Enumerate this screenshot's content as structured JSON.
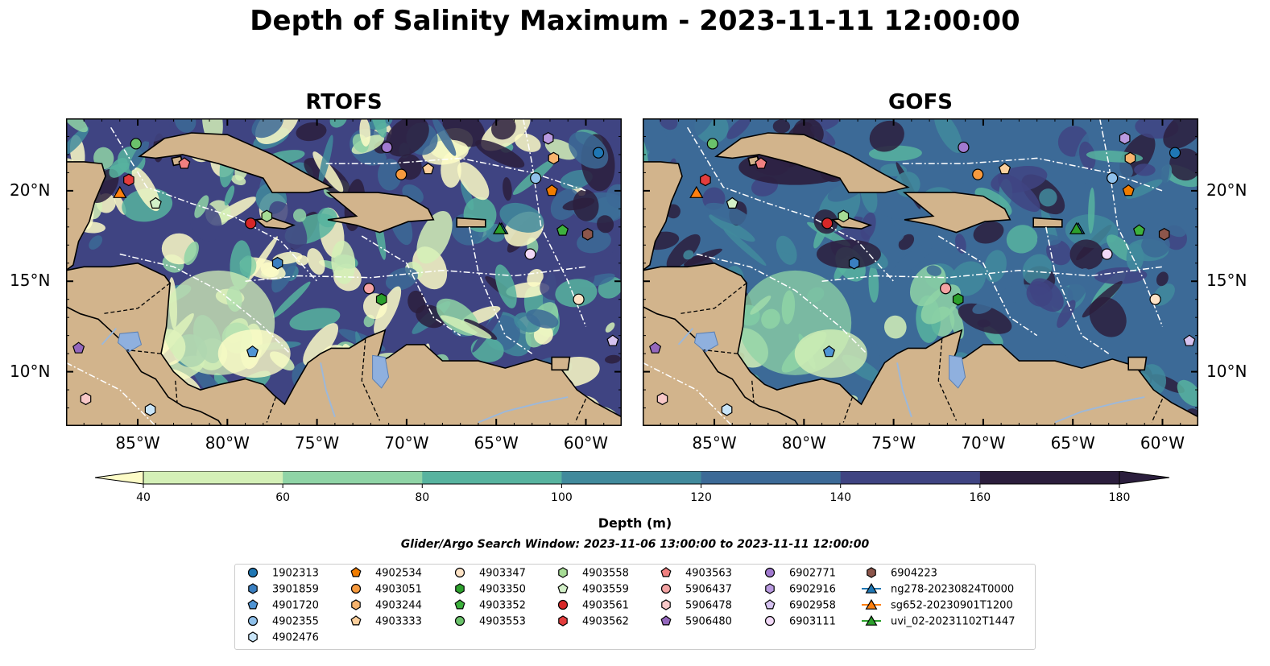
{
  "title": "Depth of Salinity Maximum - 2023-11-11 12:00:00",
  "panels": [
    {
      "title": "RTOFS"
    },
    {
      "title": "GOFS"
    }
  ],
  "lon_ticks": [
    "85°W",
    "80°W",
    "75°W",
    "70°W",
    "65°W",
    "60°W"
  ],
  "lat_ticks": [
    "20°N",
    "15°N",
    "10°N"
  ],
  "colors": {
    "land": "#d2b48c",
    "river": "#9db8d9",
    "levels": [
      "#fdfcc7",
      "#d4f0b7",
      "#8fd4a6",
      "#57b39f",
      "#418a9c",
      "#3c6a97",
      "#3f4482",
      "#2b1e3d"
    ]
  },
  "colorbar": {
    "ticks": [
      "40",
      "60",
      "80",
      "100",
      "120",
      "140",
      "160",
      "180"
    ],
    "label": "Depth (m)"
  },
  "search_window": "Glider/Argo Search Window: 2023-11-06 13:00:00 to 2023-11-11 12:00:00",
  "legend": [
    {
      "label": "1902313",
      "marker": "circle",
      "color": "#1f77b4"
    },
    {
      "label": "3901859",
      "marker": "hexagon",
      "color": "#3a7fc1"
    },
    {
      "label": "4901720",
      "marker": "pentagon",
      "color": "#4f94d4"
    },
    {
      "label": "4902355",
      "marker": "circle",
      "color": "#8fc0ea"
    },
    {
      "label": "4902476",
      "marker": "hexagon",
      "color": "#c8e4f7"
    },
    {
      "label": "4902534",
      "marker": "pentagon",
      "color": "#f07c00"
    },
    {
      "label": "4903051",
      "marker": "circle",
      "color": "#f79a3e"
    },
    {
      "label": "4903244",
      "marker": "hexagon",
      "color": "#f8b46e"
    },
    {
      "label": "4903333",
      "marker": "pentagon",
      "color": "#fbcf9c"
    },
    {
      "label": "4903347",
      "marker": "circle",
      "color": "#fde3c6"
    },
    {
      "label": "4903350",
      "marker": "hexagon",
      "color": "#2ca02c"
    },
    {
      "label": "4903352",
      "marker": "pentagon",
      "color": "#3db13d"
    },
    {
      "label": "4903553",
      "marker": "circle",
      "color": "#6bc26b"
    },
    {
      "label": "4903558",
      "marker": "hexagon",
      "color": "#a6dc95"
    },
    {
      "label": "4903559",
      "marker": "pentagon",
      "color": "#d3f0c8"
    },
    {
      "label": "4903561",
      "marker": "circle",
      "color": "#d62728"
    },
    {
      "label": "4903562",
      "marker": "hexagon",
      "color": "#e33d3d"
    },
    {
      "label": "4903563",
      "marker": "pentagon",
      "color": "#f08080"
    },
    {
      "label": "5906437",
      "marker": "circle",
      "color": "#f4a3a3"
    },
    {
      "label": "5906478",
      "marker": "hexagon",
      "color": "#f8c8c8"
    },
    {
      "label": "5906480",
      "marker": "pentagon",
      "color": "#9467bd"
    },
    {
      "label": "6902771",
      "marker": "circle",
      "color": "#a17ad0"
    },
    {
      "label": "6902916",
      "marker": "hexagon",
      "color": "#b99ae0"
    },
    {
      "label": "6902958",
      "marker": "pentagon",
      "color": "#d6c3f0"
    },
    {
      "label": "6903111",
      "marker": "circle",
      "color": "#f1d8f7"
    },
    {
      "label": "6904223",
      "marker": "hexagon",
      "color": "#8c564b"
    },
    {
      "label": "ng278-20230824T0000",
      "marker": "triangle",
      "color": "#1f77b4"
    },
    {
      "label": "sg652-20230901T1200",
      "marker": "triangle",
      "color": "#ff7f0e"
    },
    {
      "label": "uvi_02-20231102T1447",
      "marker": "triangle",
      "color": "#2ca02c"
    }
  ],
  "chart_data": {
    "type": "heatmap",
    "title": "Depth of Salinity Maximum - 2023-11-11 12:00:00",
    "xlabel": "",
    "ylabel": "",
    "xlim": [
      -89,
      -58
    ],
    "ylim": [
      7,
      24
    ],
    "colorbar_label": "Depth (m)",
    "colorbar_levels": [
      40,
      60,
      80,
      100,
      120,
      140,
      160,
      180
    ],
    "colorbar_extend": "both",
    "panels": [
      "RTOFS",
      "GOFS"
    ],
    "observations": [
      {
        "id": "1902313",
        "lon": -59.3,
        "lat": 22.1
      },
      {
        "id": "3901859",
        "lon": -77.2,
        "lat": 16.0
      },
      {
        "id": "4901720",
        "lon": -78.6,
        "lat": 11.1
      },
      {
        "id": "4902355",
        "lon": -62.8,
        "lat": 20.7
      },
      {
        "id": "4902476",
        "lon": -84.3,
        "lat": 7.9
      },
      {
        "id": "4902534",
        "lon": -61.9,
        "lat": 20.0
      },
      {
        "id": "4903051",
        "lon": -70.3,
        "lat": 20.9
      },
      {
        "id": "4903244",
        "lon": -61.8,
        "lat": 21.8
      },
      {
        "id": "4903333",
        "lon": -68.8,
        "lat": 21.2
      },
      {
        "id": "4903347",
        "lon": -60.4,
        "lat": 14.0
      },
      {
        "id": "4903350",
        "lon": -71.4,
        "lat": 14.0
      },
      {
        "id": "4903352",
        "lon": -61.3,
        "lat": 17.8
      },
      {
        "id": "4903553",
        "lon": -85.1,
        "lat": 22.6
      },
      {
        "id": "4903558",
        "lon": -77.8,
        "lat": 18.6
      },
      {
        "id": "4903559",
        "lon": -84.0,
        "lat": 19.3
      },
      {
        "id": "4903561",
        "lon": -78.7,
        "lat": 18.2
      },
      {
        "id": "4903562",
        "lon": -85.5,
        "lat": 20.6
      },
      {
        "id": "4903563",
        "lon": -82.4,
        "lat": 21.5
      },
      {
        "id": "5906437",
        "lon": -72.1,
        "lat": 14.6
      },
      {
        "id": "5906478",
        "lon": -87.9,
        "lat": 8.5
      },
      {
        "id": "5906480",
        "lon": -88.3,
        "lat": 11.3
      },
      {
        "id": "6902771",
        "lon": -71.1,
        "lat": 22.4
      },
      {
        "id": "6902916",
        "lon": -62.1,
        "lat": 22.9
      },
      {
        "id": "6902958",
        "lon": -58.5,
        "lat": 11.7
      },
      {
        "id": "6903111",
        "lon": -63.1,
        "lat": 16.5
      },
      {
        "id": "6904223",
        "lon": -59.9,
        "lat": 17.6
      },
      {
        "id": "ng278-20230824T0000",
        "lon": -64.7,
        "lat": 17.9
      },
      {
        "id": "sg652-20230901T1200",
        "lon": -86.0,
        "lat": 19.9
      },
      {
        "id": "uvi_02-20231102T1447",
        "lon": -64.8,
        "lat": 17.9
      }
    ]
  }
}
